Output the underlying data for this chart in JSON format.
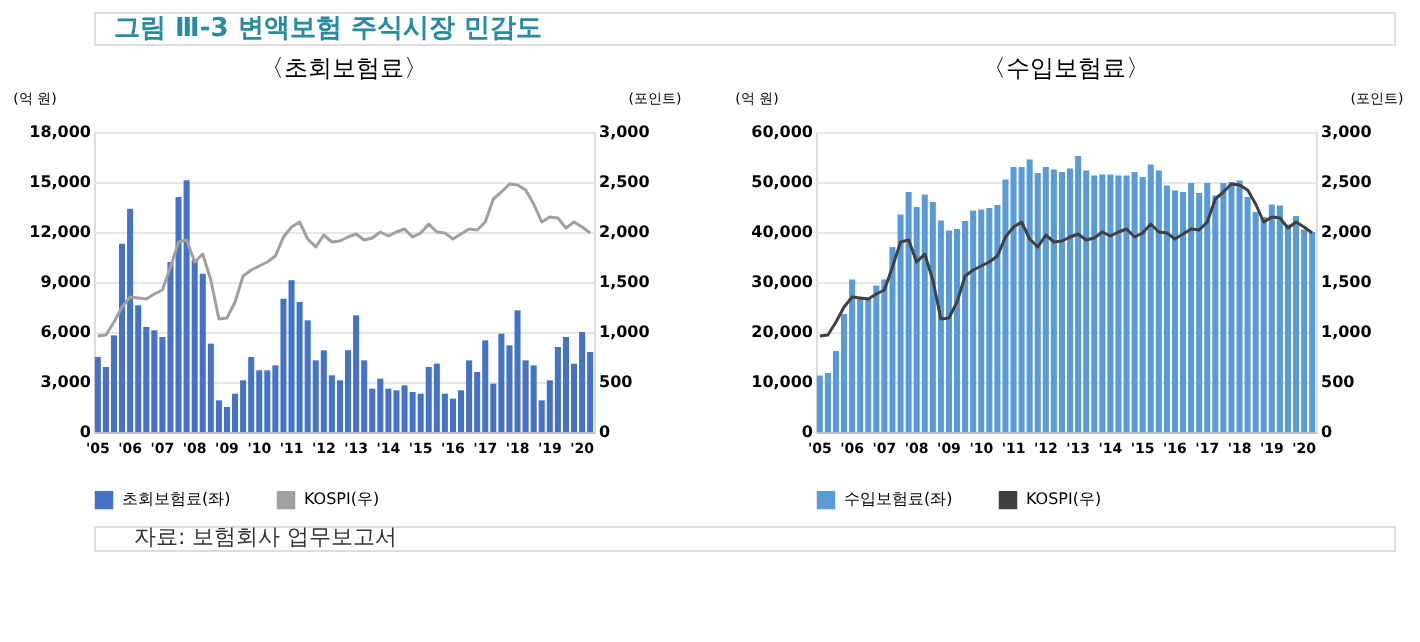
{
  "chart_data": [
    {
      "type": "bar",
      "title": "〈초회보험료〉",
      "ylabel": "(억 원)",
      "y2label": "(포인트)",
      "annotations": [
        "그림 Ⅲ-3 변액보험 주식시장 민감도",
        "자료: 보험회사 업무보고서"
      ],
      "categories": [
        "'05",
        null,
        null,
        null,
        "'06",
        null,
        null,
        null,
        "'07",
        null,
        null,
        null,
        "'08",
        null,
        null,
        null,
        "'09",
        null,
        null,
        null,
        "'10",
        null,
        null,
        null,
        "'11",
        null,
        null,
        null,
        "'12",
        null,
        null,
        null,
        "'13",
        null,
        null,
        null,
        "'14",
        null,
        null,
        null,
        "'15",
        null,
        null,
        null,
        "'16",
        null,
        null,
        null,
        "'17",
        null,
        null,
        null,
        "'18",
        null,
        null,
        null,
        "'19",
        null,
        null,
        null,
        "'20",
        null
      ],
      "series": [
        {
          "name": "초회보험료(좌)",
          "color": "#4472c4",
          "values": [
            4500,
            3900,
            5800,
            11300,
            13400,
            7600,
            6300,
            6100,
            5700,
            10200,
            14100,
            15100,
            10300,
            9500,
            5300,
            1900,
            1500,
            2300,
            3100,
            4500,
            3700,
            3700,
            4000,
            8000,
            9100,
            7800,
            6700,
            4300,
            4900,
            3400,
            3100,
            4900,
            7000,
            4300,
            2600,
            3200,
            2600,
            2500,
            2800,
            2400,
            2300,
            3900,
            4100,
            2300,
            2000,
            2500,
            4300,
            3600,
            5500,
            2900,
            5900,
            5200,
            7300,
            4300,
            4000,
            1900,
            3100,
            5100,
            5700,
            4100,
            6000,
            4800
          ]
        },
        {
          "name": "KOSPI(우)",
          "type": "line",
          "axis": "y2",
          "color": "#a0a0a0",
          "values": [
            960,
            970,
            1100,
            1250,
            1350,
            1340,
            1330,
            1380,
            1420,
            1650,
            1900,
            1920,
            1700,
            1780,
            1520,
            1130,
            1140,
            1300,
            1560,
            1620,
            1660,
            1700,
            1760,
            1950,
            2050,
            2100,
            1930,
            1850,
            1970,
            1900,
            1910,
            1950,
            1980,
            1920,
            1940,
            2000,
            1960,
            2000,
            2030,
            1950,
            1990,
            2080,
            2000,
            1990,
            1930,
            1980,
            2030,
            2020,
            2100,
            2330,
            2400,
            2480,
            2470,
            2420,
            2280,
            2100,
            2150,
            2140,
            2040,
            2100,
            2050,
            1990
          ]
        }
      ],
      "ylim": [
        0,
        18000
      ],
      "yticks": [
        {
          "value": 0,
          "label": "0"
        },
        {
          "value": 3000,
          "label": "3,000"
        },
        {
          "value": 6000,
          "label": "6,000"
        },
        {
          "value": 9000,
          "label": "9,000"
        },
        {
          "value": 12000,
          "label": "12,000"
        },
        {
          "value": 15000,
          "label": "15,000"
        },
        {
          "value": 18000,
          "label": "18,000"
        }
      ],
      "y2lim": [
        0,
        3000
      ],
      "y2ticks": [
        {
          "value": 0,
          "label": "0"
        },
        {
          "value": 500,
          "label": "500"
        },
        {
          "value": 1000,
          "label": "1,000"
        },
        {
          "value": 1500,
          "label": "1,500"
        },
        {
          "value": 2000,
          "label": "2,000"
        },
        {
          "value": 2500,
          "label": "2,500"
        },
        {
          "value": 3000,
          "label": "3,000"
        }
      ],
      "grid": "y",
      "legend": "bottom"
    },
    {
      "type": "bar",
      "title": "〈수입보험료〉",
      "ylabel": "(억 원)",
      "y2label": "(포인트)",
      "categories": [
        "'05",
        null,
        null,
        null,
        "'06",
        null,
        null,
        null,
        "'07",
        null,
        null,
        null,
        "'08",
        null,
        null,
        null,
        "'09",
        null,
        null,
        null,
        "'10",
        null,
        null,
        null,
        "'11",
        null,
        null,
        null,
        "'12",
        null,
        null,
        null,
        "'13",
        null,
        null,
        null,
        "'14",
        null,
        null,
        null,
        "'15",
        null,
        null,
        null,
        "'16",
        null,
        null,
        null,
        "'17",
        null,
        null,
        null,
        "'18",
        null,
        null,
        null,
        "'19",
        null,
        null,
        null,
        "'20",
        null
      ],
      "series": [
        {
          "name": "수입보험료(좌)",
          "color": "#5b9bd5",
          "values": [
            11300,
            11800,
            16200,
            23600,
            30500,
            27000,
            27000,
            29300,
            30500,
            37000,
            43500,
            48000,
            45000,
            47500,
            46000,
            42300,
            40300,
            40600,
            42200,
            44300,
            44500,
            44800,
            45400,
            50500,
            53000,
            53000,
            54500,
            51800,
            53000,
            52500,
            52000,
            52700,
            55200,
            52300,
            51300,
            51500,
            51500,
            51300,
            51300,
            52000,
            51000,
            53500,
            52300,
            49300,
            48300,
            48000,
            49800,
            47800,
            49800,
            47300,
            49800,
            50000,
            50300,
            47000,
            44000,
            43000,
            45500,
            45300,
            41500,
            43200,
            40500,
            40000
          ]
        },
        {
          "name": "KOSPI(우)",
          "type": "line",
          "axis": "y2",
          "color": "#404040",
          "values": [
            960,
            970,
            1100,
            1250,
            1350,
            1340,
            1330,
            1380,
            1420,
            1650,
            1900,
            1920,
            1700,
            1780,
            1520,
            1130,
            1140,
            1300,
            1560,
            1620,
            1660,
            1700,
            1760,
            1950,
            2050,
            2100,
            1930,
            1850,
            1970,
            1900,
            1910,
            1950,
            1980,
            1920,
            1940,
            2000,
            1960,
            2000,
            2030,
            1950,
            1990,
            2080,
            2000,
            1990,
            1930,
            1980,
            2030,
            2020,
            2100,
            2330,
            2400,
            2480,
            2470,
            2420,
            2280,
            2100,
            2150,
            2140,
            2040,
            2100,
            2050,
            1990
          ]
        }
      ],
      "ylim": [
        0,
        60000
      ],
      "yticks": [
        {
          "value": 0,
          "label": "0"
        },
        {
          "value": 10000,
          "label": "10,000"
        },
        {
          "value": 20000,
          "label": "20,000"
        },
        {
          "value": 30000,
          "label": "30,000"
        },
        {
          "value": 40000,
          "label": "40,000"
        },
        {
          "value": 50000,
          "label": "50,000"
        },
        {
          "value": 60000,
          "label": "60,000"
        }
      ],
      "y2lim": [
        0,
        3000
      ],
      "y2ticks": [
        {
          "value": 0,
          "label": "0"
        },
        {
          "value": 500,
          "label": "500"
        },
        {
          "value": 1000,
          "label": "1,000"
        },
        {
          "value": 1500,
          "label": "1,500"
        },
        {
          "value": 2000,
          "label": "2,000"
        },
        {
          "value": 2500,
          "label": "2,500"
        },
        {
          "value": 3000,
          "label": "3,000"
        }
      ],
      "grid": "y",
      "legend": "bottom"
    }
  ]
}
